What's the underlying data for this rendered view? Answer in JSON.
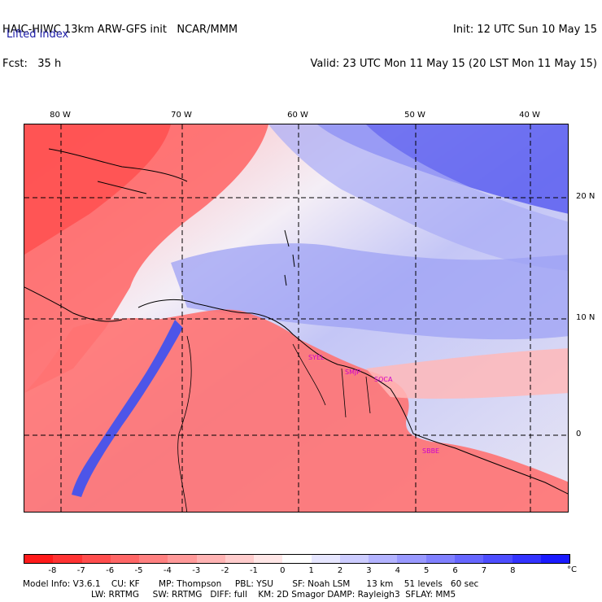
{
  "header": {
    "left_line1": "HAIC-HIWC 13km ARW-GFS init   NCAR/MMM",
    "left_line2": "Fcst:   35 h",
    "right_line1": "Init: 12 UTC Sun 10 May 15",
    "right_line2": "Valid: 23 UTC Mon 11 May 15 (20 LST Mon 11 May 15)",
    "field": "Lifted index"
  },
  "map": {
    "lon_labels": [
      "80 W",
      "70 W",
      "60 W",
      "50 W",
      "40 W"
    ],
    "lat_labels": [
      "20 N",
      "10 N",
      "0"
    ],
    "stations": [
      "SYEL",
      "SMJP",
      "SOCA",
      "SBBE"
    ]
  },
  "legend": {
    "labels": [
      "-8",
      "-7",
      "-6",
      "-5",
      "-4",
      "-3",
      "-2",
      "-1",
      "0",
      "1",
      "2",
      "3",
      "4",
      "5",
      "6",
      "7",
      "8"
    ],
    "unit": "°C",
    "colors": [
      "#ff1a1a",
      "#ff3333",
      "#ff4d4d",
      "#ff6666",
      "#ff8080",
      "#ff9999",
      "#ffb3b3",
      "#ffcccc",
      "#ffe6e6",
      "#ffffff",
      "#e6e6ff",
      "#ccccff",
      "#b3b3ff",
      "#9999ff",
      "#8080ff",
      "#6666ff",
      "#4d4dff",
      "#3333ff",
      "#1a1aff"
    ]
  },
  "footer": {
    "line1": "Model Info: V3.6.1    CU: KF       MP: Thompson     PBL: YSU       SF: Noah LSM      13 km    51 levels   60 sec",
    "line2": "LW: RRTMG     SW: RRTMG   DIFF: full    KM: 2D Smagor DAMP: Rayleigh3  SFLAY: MM5"
  }
}
